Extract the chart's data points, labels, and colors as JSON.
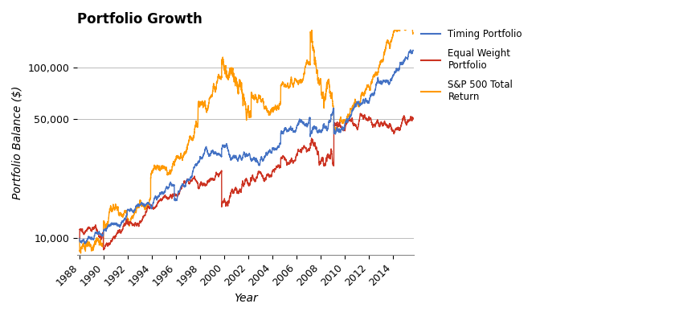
{
  "title": "Portfolio Growth",
  "xlabel": "Year",
  "ylabel": "Portfolio Balance ($)",
  "title_fontsize": 12,
  "label_fontsize": 10,
  "tick_fontsize": 9,
  "background_color": "#ffffff",
  "plot_bg_color": "#ffffff",
  "grid_color": "#bbbbbb",
  "line_timing_color": "#4472c4",
  "line_equal_color": "#cc3322",
  "line_sp500_color": "#ff9900",
  "line_width": 1.0,
  "legend_labels": [
    "Timing Portfolio",
    "Equal Weight\nPortfolio",
    "S&P 500 Total\nReturn"
  ],
  "xmin": 1987.8,
  "xmax": 2015.8,
  "ymin": 8000,
  "ymax": 165000,
  "yticks": [
    10000,
    50000,
    100000
  ],
  "ytick_labels": [
    "10,000",
    "50,000",
    "100,000"
  ],
  "xticks": [
    1988,
    1990,
    1992,
    1994,
    1996,
    1998,
    2000,
    2002,
    2004,
    2006,
    2008,
    2010,
    2012,
    2014
  ]
}
